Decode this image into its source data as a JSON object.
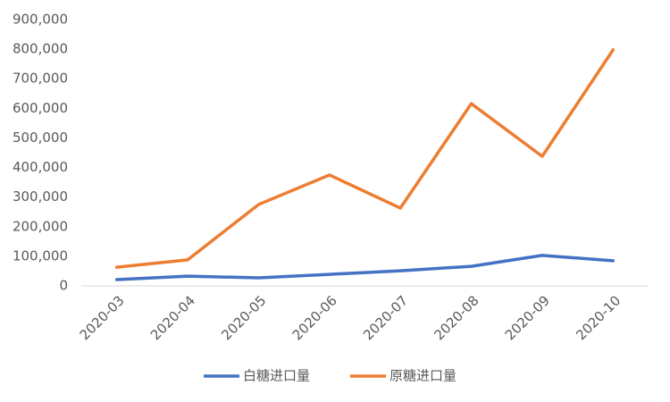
{
  "chart_data": {
    "type": "line",
    "categories": [
      "2020-03",
      "2020-04",
      "2020-05",
      "2020-06",
      "2020-07",
      "2020-08",
      "2020-09",
      "2020-10"
    ],
    "series": [
      {
        "name": "白糖进口量",
        "color": "#4472c4",
        "values": [
          21000,
          33000,
          27000,
          39000,
          51000,
          66000,
          103000,
          85000
        ]
      },
      {
        "name": "原糖进口量",
        "color": "#ed7d31",
        "values": [
          63000,
          88000,
          275000,
          375000,
          263000,
          616000,
          438000,
          798000
        ]
      }
    ],
    "ylim": [
      0,
      900000
    ],
    "yticks": [
      0,
      {
        "value": 100000,
        "label": "100,000"
      },
      {
        "value": 200000,
        "label": "200,000"
      },
      {
        "value": 300000,
        "label": "300,000"
      },
      {
        "value": 400000,
        "label": "400,000"
      },
      {
        "value": 500000,
        "label": "500,000"
      },
      {
        "value": 600000,
        "label": "600,000"
      },
      {
        "value": 700000,
        "label": "700,000"
      },
      {
        "value": 800000,
        "label": "800,000"
      },
      {
        "value": 900000,
        "label": "900,000"
      }
    ],
    "grid": false,
    "legend": "bottom"
  }
}
